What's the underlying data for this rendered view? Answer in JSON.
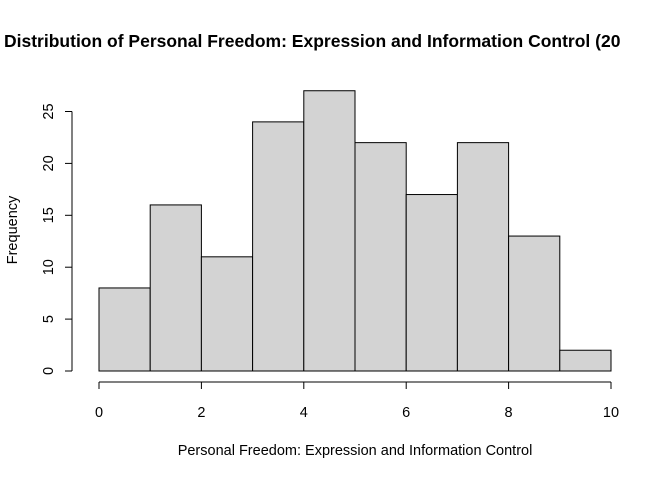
{
  "chart_data": {
    "type": "histogram",
    "title": "Distribution of Personal Freedom: Expression and Information Control (20",
    "xlabel": "Personal Freedom: Expression and Information Control",
    "ylabel": "Frequency",
    "bins": [
      {
        "start": 0,
        "end": 1,
        "count": 8
      },
      {
        "start": 1,
        "end": 2,
        "count": 16
      },
      {
        "start": 2,
        "end": 3,
        "count": 11
      },
      {
        "start": 3,
        "end": 4,
        "count": 24
      },
      {
        "start": 4,
        "end": 5,
        "count": 27
      },
      {
        "start": 5,
        "end": 6,
        "count": 22
      },
      {
        "start": 6,
        "end": 7,
        "count": 17
      },
      {
        "start": 7,
        "end": 8,
        "count": 22
      },
      {
        "start": 8,
        "end": 9,
        "count": 13
      },
      {
        "start": 9,
        "end": 10,
        "count": 2
      }
    ],
    "x_ticks": [
      "0",
      "2",
      "4",
      "6",
      "8",
      "10"
    ],
    "y_ticks": [
      "0",
      "5",
      "10",
      "15",
      "20",
      "25"
    ],
    "xlim": [
      0,
      10
    ],
    "ylim": [
      0,
      27
    ],
    "bar_fill": "#d3d3d3",
    "bar_stroke": "#000000",
    "grid": false,
    "legend": "none"
  }
}
